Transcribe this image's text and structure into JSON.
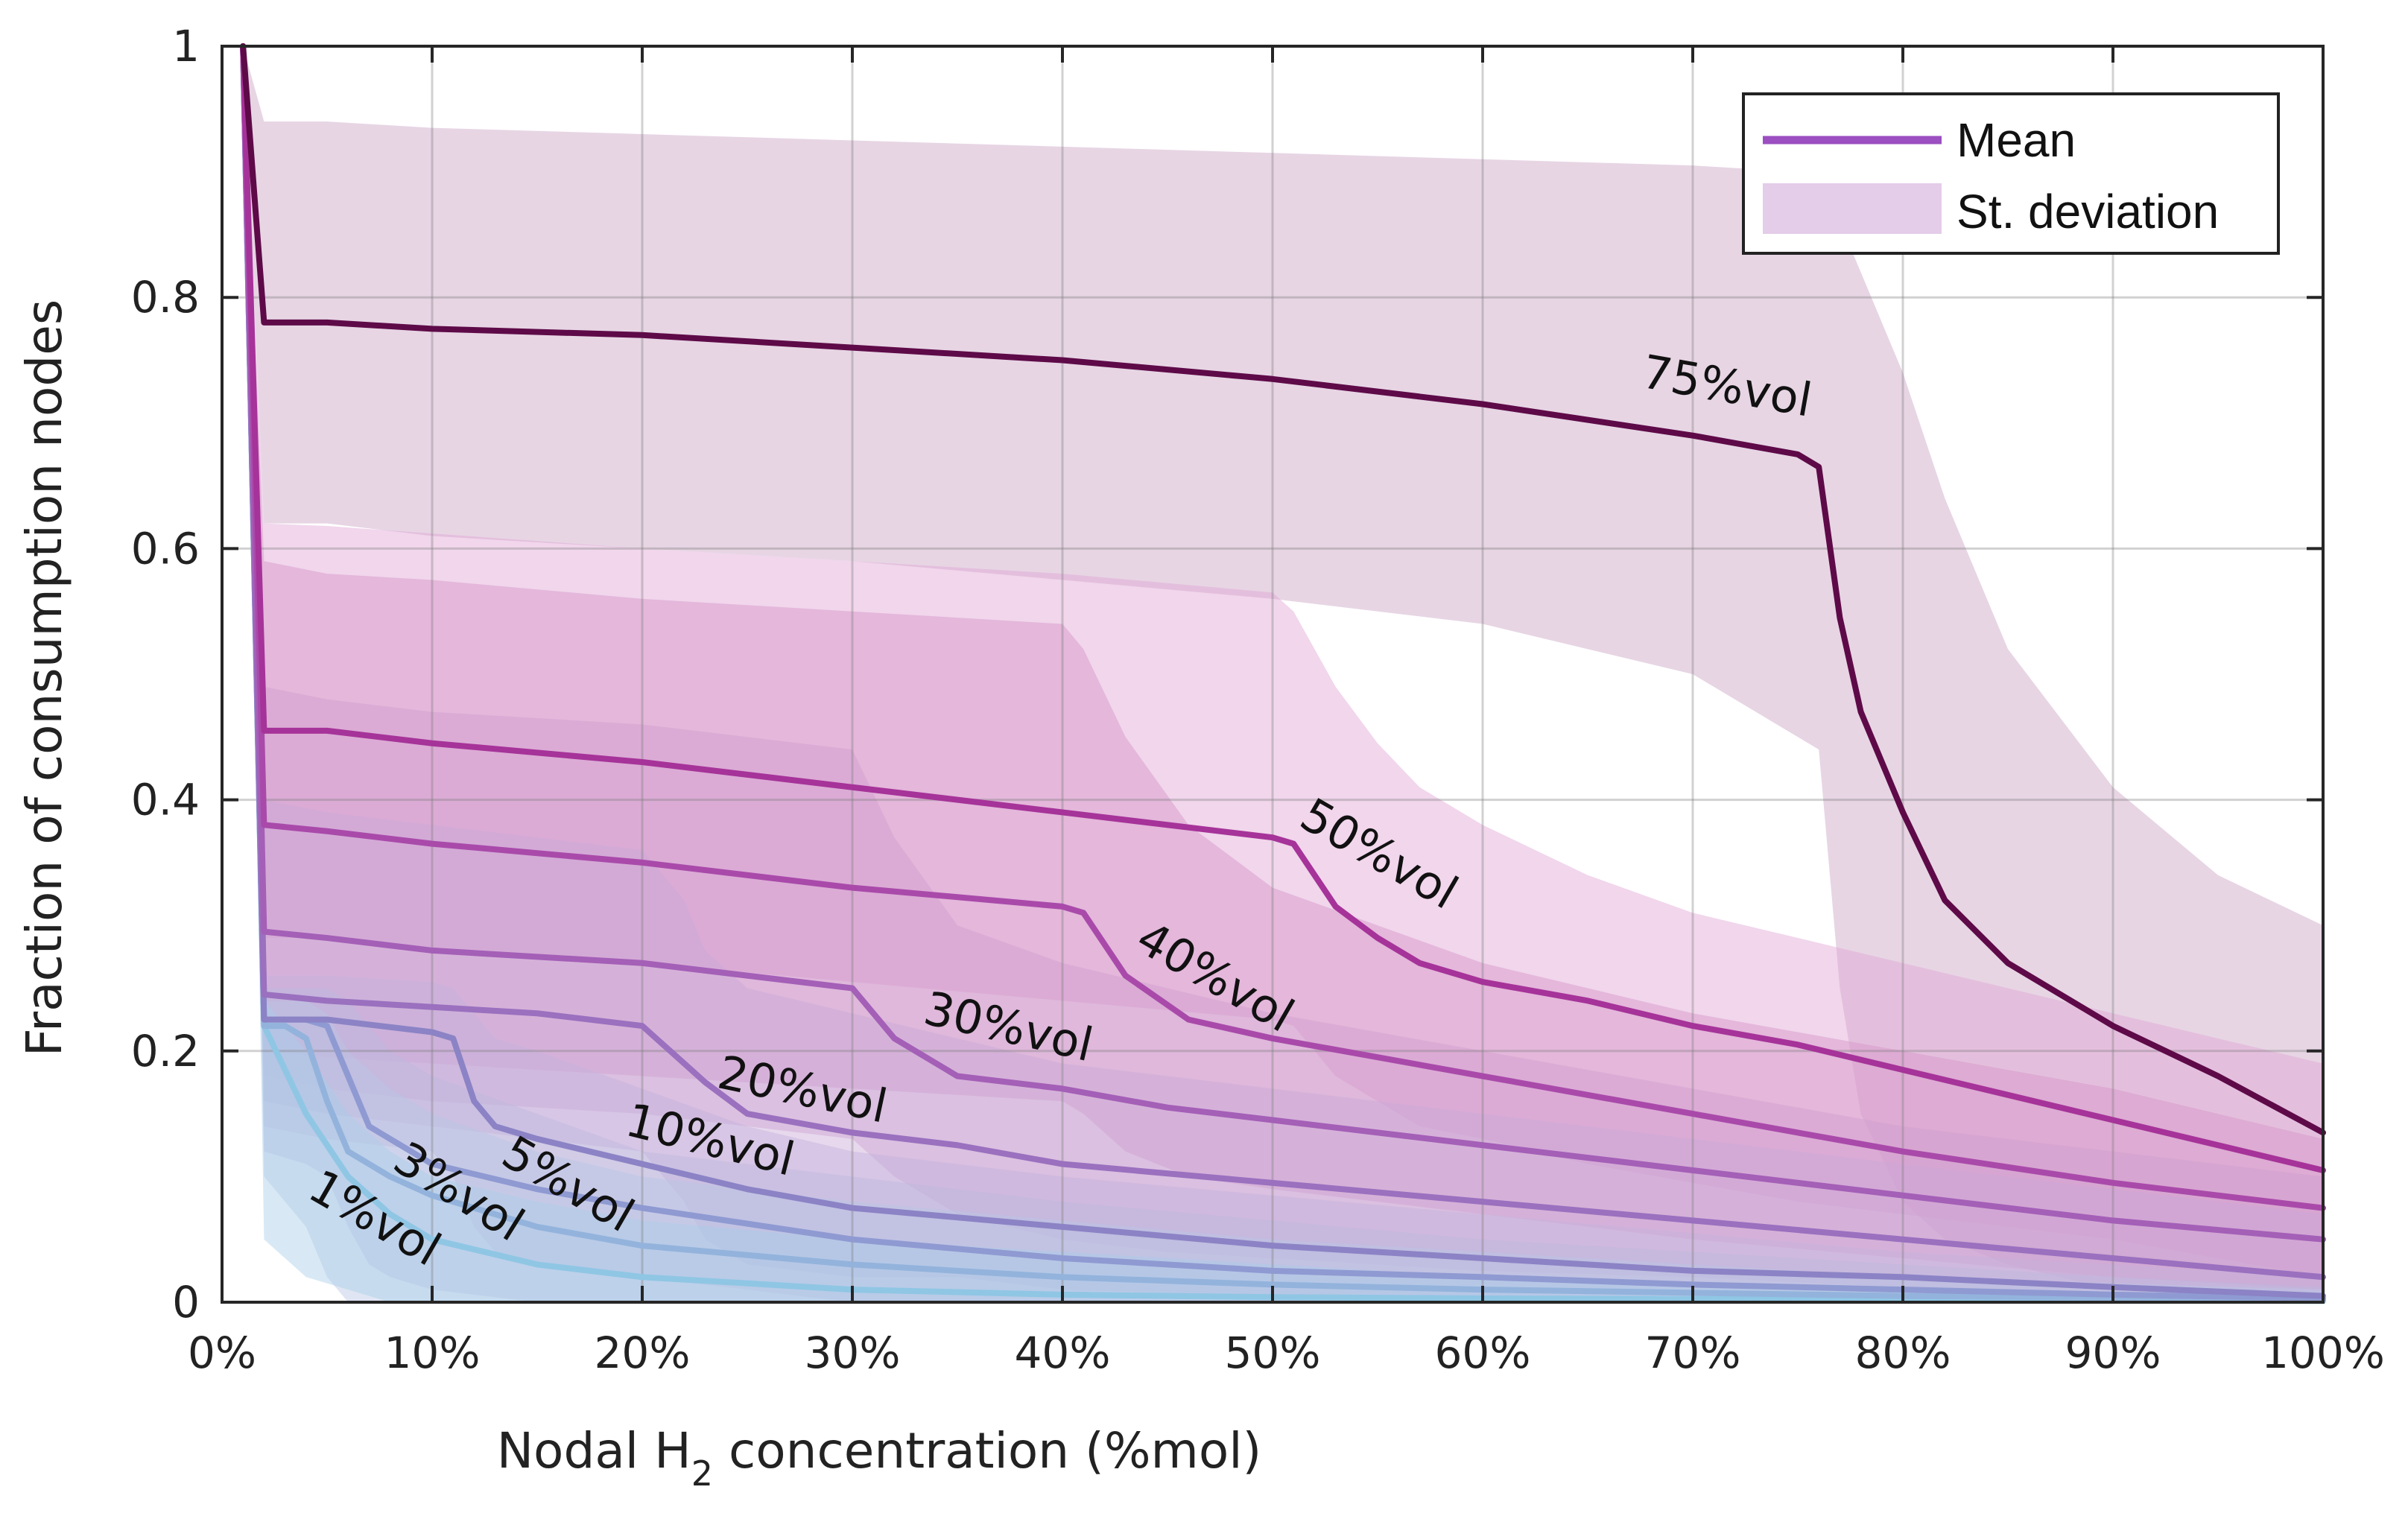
{
  "chart_data": {
    "type": "line",
    "title": "",
    "xlabel": "Nodal H2 concentration (%mol)",
    "xlabel_parts": {
      "main": "Nodal H",
      "sub": "2",
      "rest": " concentration (%mol)"
    },
    "ylabel": "Fraction of consumption nodes",
    "xlim": [
      0,
      100
    ],
    "ylim": [
      0,
      1
    ],
    "grid": true,
    "legend_position": "top-right",
    "xticks": [
      0,
      10,
      20,
      30,
      40,
      50,
      60,
      70,
      80,
      90,
      100
    ],
    "xtick_labels": [
      "0%",
      "10%",
      "20%",
      "30%",
      "40%",
      "50%",
      "60%",
      "70%",
      "80%",
      "90%",
      "100%"
    ],
    "yticks": [
      0,
      0.2,
      0.4,
      0.6,
      0.8,
      1
    ],
    "ytick_labels": [
      "0",
      "0.2",
      "0.4",
      "0.6",
      "0.8",
      "1"
    ],
    "legend": [
      {
        "label": "Mean",
        "kind": "line",
        "color": "#9b4fc0"
      },
      {
        "label": "St. deviation",
        "kind": "band",
        "color": "#e4cde9"
      }
    ],
    "series": [
      {
        "name": "1%vol",
        "color": "#8fc6e4",
        "band_color": "#a9cfe8",
        "x": [
          1,
          2,
          4,
          6,
          8,
          10,
          15,
          20,
          30,
          40,
          50,
          60,
          80,
          100
        ],
        "mean": [
          1,
          0.22,
          0.15,
          0.1,
          0.07,
          0.05,
          0.03,
          0.02,
          0.01,
          0.006,
          0.004,
          0.003,
          0.002,
          0.001
        ],
        "upper": [
          1,
          0.24,
          0.2,
          0.15,
          0.12,
          0.1,
          0.08,
          0.065,
          0.05,
          0.04,
          0.03,
          0.02,
          0.01,
          0.005
        ],
        "lower": [
          1,
          0.05,
          0.02,
          0.01,
          0,
          0,
          0,
          0,
          0,
          0,
          0,
          0,
          0,
          0
        ],
        "label_text": "1%vol",
        "label_x": 7.2,
        "label_y": 0.065,
        "label_angle": 30
      },
      {
        "name": "3%vol",
        "color": "#93b3dc",
        "band_color": "#b9c6e4",
        "x": [
          1,
          2,
          3,
          4,
          5,
          6,
          8,
          10,
          15,
          20,
          30,
          40,
          50,
          60,
          80,
          100
        ],
        "mean": [
          1,
          0.22,
          0.22,
          0.21,
          0.16,
          0.12,
          0.1,
          0.085,
          0.06,
          0.045,
          0.03,
          0.02,
          0.014,
          0.01,
          0.005,
          0.002
        ],
        "upper": [
          1,
          0.24,
          0.24,
          0.24,
          0.23,
          0.2,
          0.17,
          0.15,
          0.12,
          0.1,
          0.08,
          0.065,
          0.05,
          0.04,
          0.02,
          0.01
        ],
        "lower": [
          1,
          0.1,
          0.08,
          0.06,
          0.02,
          0,
          0,
          0,
          0,
          0,
          0,
          0,
          0,
          0,
          0,
          0
        ],
        "label_text": "3%vol",
        "label_x": 11.2,
        "label_y": 0.086,
        "label_angle": 32
      },
      {
        "name": "5%vol",
        "color": "#8f9ad2",
        "band_color": "#bcb8de",
        "x": [
          1,
          2,
          4,
          5,
          6,
          7,
          8,
          10,
          15,
          20,
          30,
          40,
          50,
          60,
          70,
          80,
          90,
          100
        ],
        "mean": [
          1,
          0.225,
          0.225,
          0.22,
          0.18,
          0.14,
          0.13,
          0.11,
          0.09,
          0.075,
          0.05,
          0.035,
          0.025,
          0.02,
          0.014,
          0.01,
          0.006,
          0.003
        ],
        "upper": [
          1,
          0.25,
          0.25,
          0.25,
          0.24,
          0.22,
          0.2,
          0.18,
          0.15,
          0.12,
          0.1,
          0.08,
          0.065,
          0.05,
          0.04,
          0.03,
          0.02,
          0.012
        ],
        "lower": [
          1,
          0.12,
          0.11,
          0.1,
          0.06,
          0.03,
          0.02,
          0.01,
          0,
          0,
          0,
          0,
          0,
          0,
          0,
          0,
          0,
          0
        ],
        "label_text": "5%vol",
        "label_x": 16.4,
        "label_y": 0.092,
        "label_angle": 30
      },
      {
        "name": "10%vol",
        "color": "#8b83c5",
        "band_color": "#c4b2dc",
        "x": [
          1,
          2,
          5,
          10,
          11,
          12,
          13,
          15,
          20,
          25,
          30,
          40,
          50,
          60,
          70,
          80,
          90,
          100
        ],
        "mean": [
          1,
          0.225,
          0.225,
          0.215,
          0.21,
          0.16,
          0.14,
          0.13,
          0.11,
          0.09,
          0.075,
          0.06,
          0.045,
          0.035,
          0.025,
          0.02,
          0.012,
          0.005
        ],
        "upper": [
          1,
          0.26,
          0.26,
          0.255,
          0.25,
          0.23,
          0.21,
          0.2,
          0.17,
          0.14,
          0.12,
          0.1,
          0.085,
          0.07,
          0.055,
          0.04,
          0.03,
          0.02
        ],
        "lower": [
          1,
          0.14,
          0.13,
          0.12,
          0.1,
          0.06,
          0.04,
          0.03,
          0.02,
          0.01,
          0,
          0,
          0,
          0,
          0,
          0,
          0,
          0
        ],
        "label_text": "10%vol",
        "label_x": 23.2,
        "label_y": 0.127,
        "label_angle": 14
      },
      {
        "name": "20%vol",
        "color": "#9a70bf",
        "band_color": "#c9a9d8",
        "x": [
          1,
          2,
          5,
          10,
          15,
          20,
          22,
          23,
          25,
          30,
          35,
          40,
          50,
          60,
          70,
          80,
          90,
          100
        ],
        "mean": [
          1,
          0.245,
          0.24,
          0.235,
          0.23,
          0.22,
          0.19,
          0.175,
          0.15,
          0.135,
          0.125,
          0.11,
          0.095,
          0.08,
          0.065,
          0.05,
          0.035,
          0.02
        ],
        "upper": [
          1,
          0.4,
          0.39,
          0.38,
          0.37,
          0.36,
          0.32,
          0.28,
          0.25,
          0.23,
          0.21,
          0.19,
          0.17,
          0.15,
          0.13,
          0.11,
          0.09,
          0.07
        ],
        "lower": [
          1,
          0.16,
          0.15,
          0.14,
          0.13,
          0.12,
          0.08,
          0.05,
          0.03,
          0.02,
          0.02,
          0.01,
          0.005,
          0,
          0,
          0,
          0,
          0
        ],
        "label_text": "20%vol",
        "label_x": 27.6,
        "label_y": 0.167,
        "label_angle": 12
      },
      {
        "name": "30%vol",
        "color": "#a45fb7",
        "band_color": "#d09ecf",
        "x": [
          1,
          2,
          5,
          10,
          20,
          30,
          32,
          35,
          40,
          45,
          50,
          60,
          70,
          80,
          90,
          100
        ],
        "mean": [
          1,
          0.295,
          0.29,
          0.28,
          0.27,
          0.25,
          0.21,
          0.18,
          0.17,
          0.155,
          0.145,
          0.125,
          0.105,
          0.085,
          0.065,
          0.05
        ],
        "upper": [
          1,
          0.49,
          0.48,
          0.47,
          0.46,
          0.44,
          0.37,
          0.3,
          0.27,
          0.25,
          0.23,
          0.2,
          0.17,
          0.14,
          0.12,
          0.1
        ],
        "lower": [
          1,
          0.18,
          0.17,
          0.16,
          0.15,
          0.13,
          0.1,
          0.07,
          0.05,
          0.04,
          0.035,
          0.025,
          0.02,
          0.012,
          0.006,
          0
        ],
        "label_text": "30%vol",
        "label_x": 37.4,
        "label_y": 0.217,
        "label_angle": 13
      },
      {
        "name": "40%vol",
        "color": "#a94aaa",
        "band_color": "#d593c8",
        "x": [
          1,
          2,
          5,
          10,
          20,
          30,
          40,
          41,
          43,
          46,
          50,
          55,
          60,
          70,
          80,
          90,
          100
        ],
        "mean": [
          1,
          0.38,
          0.375,
          0.365,
          0.35,
          0.33,
          0.315,
          0.31,
          0.26,
          0.225,
          0.21,
          0.195,
          0.18,
          0.15,
          0.12,
          0.095,
          0.075
        ],
        "upper": [
          1,
          0.59,
          0.58,
          0.575,
          0.56,
          0.55,
          0.54,
          0.52,
          0.45,
          0.38,
          0.33,
          0.3,
          0.27,
          0.23,
          0.2,
          0.17,
          0.13
        ],
        "lower": [
          1,
          0.2,
          0.195,
          0.19,
          0.18,
          0.17,
          0.16,
          0.15,
          0.12,
          0.1,
          0.09,
          0.08,
          0.07,
          0.05,
          0.035,
          0.02,
          0.01
        ],
        "label_text": "40%vol",
        "label_x": 47.2,
        "label_y": 0.257,
        "label_angle": 30
      },
      {
        "name": "50%vol",
        "color": "#a63399",
        "band_color": "#e0a5d4",
        "x": [
          1,
          2,
          5,
          10,
          20,
          30,
          40,
          50,
          51,
          52,
          53,
          55,
          57,
          60,
          65,
          70,
          75,
          80,
          85,
          90,
          95,
          100
        ],
        "mean": [
          1,
          0.455,
          0.455,
          0.445,
          0.43,
          0.41,
          0.39,
          0.37,
          0.365,
          0.34,
          0.315,
          0.29,
          0.27,
          0.255,
          0.24,
          0.22,
          0.205,
          0.185,
          0.165,
          0.145,
          0.125,
          0.105
        ],
        "upper": [
          1,
          0.62,
          0.618,
          0.612,
          0.6,
          0.59,
          0.58,
          0.565,
          0.55,
          0.52,
          0.49,
          0.445,
          0.41,
          0.38,
          0.34,
          0.31,
          0.29,
          0.27,
          0.25,
          0.23,
          0.21,
          0.19
        ],
        "lower": [
          1,
          0.29,
          0.29,
          0.28,
          0.27,
          0.255,
          0.24,
          0.225,
          0.22,
          0.2,
          0.18,
          0.16,
          0.14,
          0.13,
          0.11,
          0.095,
          0.08,
          0.07,
          0.06,
          0.05,
          0.035,
          0.02
        ],
        "label_text": "50%vol",
        "label_x": 55,
        "label_y": 0.355,
        "label_angle": 30
      },
      {
        "name": "75%vol",
        "color": "#5e0a48",
        "band_color": "#caa1c3",
        "x": [
          1,
          2,
          5,
          10,
          20,
          30,
          40,
          50,
          60,
          70,
          75,
          76,
          77,
          78,
          80,
          82,
          85,
          90,
          95,
          100
        ],
        "mean": [
          1,
          0.78,
          0.78,
          0.775,
          0.77,
          0.76,
          0.75,
          0.735,
          0.715,
          0.69,
          0.675,
          0.665,
          0.545,
          0.47,
          0.39,
          0.32,
          0.27,
          0.22,
          0.18,
          0.135
        ],
        "upper": [
          1,
          0.94,
          0.94,
          0.935,
          0.93,
          0.925,
          0.92,
          0.915,
          0.91,
          0.905,
          0.9,
          0.89,
          0.86,
          0.82,
          0.74,
          0.64,
          0.52,
          0.41,
          0.34,
          0.3
        ],
        "lower": [
          1,
          0.62,
          0.62,
          0.61,
          0.6,
          0.59,
          0.575,
          0.56,
          0.54,
          0.5,
          0.45,
          0.44,
          0.25,
          0.15,
          0.08,
          0.05,
          0.03,
          0.01,
          0,
          0
        ],
        "label_text": "75%vol",
        "label_x": 71.6,
        "label_y": 0.727,
        "label_angle": 10
      }
    ]
  }
}
